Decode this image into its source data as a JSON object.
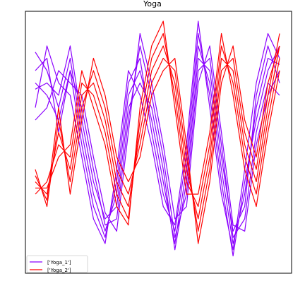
{
  "chart_data": {
    "type": "line",
    "title": "Yoga",
    "xlabel": "",
    "ylabel": "",
    "grid": false,
    "legend_position": "bottom-left",
    "axes_visible": false,
    "series_colors": {
      "Yoga_1": "#8b00ff",
      "Yoga_2": "#ff0000"
    },
    "legend": [
      {
        "label": "['Yoga_1']",
        "color": "#8b00ff"
      },
      {
        "label": "['Yoga_2']",
        "color": "#ff0000"
      }
    ],
    "x": [
      0,
      20,
      40,
      60,
      80,
      100,
      120,
      140,
      160,
      180,
      200,
      220,
      240,
      260,
      280,
      300,
      320,
      340,
      360,
      380,
      400,
      420
    ],
    "ylim": [
      -2.0,
      2.0
    ],
    "series": [
      {
        "name": "Yoga_1",
        "values": [
          1.5,
          1.2,
          0.6,
          1.4,
          0.2,
          -0.8,
          -1.4,
          -0.8,
          0.8,
          1.2,
          0.4,
          -0.6,
          -1.6,
          -0.4,
          1.6,
          1.0,
          -0.4,
          -1.6,
          -0.8,
          0.6,
          1.4,
          1.3
        ]
      },
      {
        "name": "Yoga_1",
        "values": [
          1.2,
          1.4,
          0.2,
          1.2,
          0.0,
          -1.0,
          -1.5,
          -0.6,
          1.0,
          1.4,
          0.2,
          -0.8,
          -1.4,
          -0.2,
          1.8,
          0.8,
          -0.6,
          -1.8,
          -0.6,
          0.4,
          1.2,
          1.6
        ]
      },
      {
        "name": "Yoga_1",
        "values": [
          0.9,
          1.0,
          0.8,
          1.6,
          0.4,
          -0.6,
          -1.2,
          -1.0,
          0.6,
          1.0,
          0.6,
          -0.4,
          -1.7,
          -0.6,
          1.4,
          1.2,
          -0.2,
          -1.4,
          -1.0,
          0.8,
          1.6,
          1.0
        ]
      },
      {
        "name": "Yoga_1",
        "values": [
          1.0,
          0.8,
          0.4,
          1.2,
          0.6,
          -0.4,
          -1.3,
          -1.2,
          0.4,
          1.6,
          0.8,
          -0.2,
          -1.5,
          -0.8,
          1.2,
          1.4,
          0.0,
          -1.5,
          -1.2,
          0.2,
          1.0,
          0.8
        ]
      },
      {
        "name": "Yoga_1",
        "values": [
          0.6,
          1.6,
          1.0,
          0.8,
          -0.2,
          -1.2,
          -1.6,
          -0.4,
          1.2,
          0.8,
          0.0,
          -1.0,
          -1.3,
          0.0,
          2.0,
          0.6,
          -0.8,
          -1.7,
          -0.4,
          1.0,
          1.8,
          1.4
        ]
      },
      {
        "name": "Yoga_1",
        "values": [
          0.4,
          0.6,
          1.2,
          1.0,
          0.8,
          -0.2,
          -1.1,
          -1.4,
          0.2,
          1.8,
          1.0,
          0.0,
          -1.2,
          -1.0,
          1.0,
          1.6,
          0.2,
          -1.3,
          -1.4,
          0.0,
          0.8,
          1.2
        ]
      },
      {
        "name": "Yoga_2",
        "values": [
          -0.6,
          -0.8,
          0.2,
          -0.4,
          0.8,
          1.0,
          0.4,
          -0.6,
          -1.0,
          0.2,
          1.2,
          1.6,
          1.0,
          -0.4,
          -1.2,
          -0.2,
          1.4,
          1.2,
          0.0,
          -0.6,
          0.6,
          1.6
        ]
      },
      {
        "name": "Yoga_2",
        "values": [
          -0.8,
          -0.6,
          0.0,
          -0.2,
          1.0,
          0.8,
          0.2,
          -0.8,
          -1.2,
          0.4,
          1.4,
          1.8,
          0.8,
          -0.6,
          -1.0,
          0.0,
          1.6,
          1.0,
          -0.2,
          -0.8,
          0.4,
          1.4
        ]
      },
      {
        "name": "Yoga_2",
        "values": [
          -0.4,
          -1.0,
          0.4,
          -0.6,
          0.6,
          1.2,
          0.6,
          -0.4,
          -0.8,
          0.0,
          1.0,
          1.4,
          1.2,
          -0.2,
          -1.4,
          -0.4,
          1.2,
          1.4,
          0.2,
          -0.4,
          0.8,
          1.8
        ]
      },
      {
        "name": "Yoga_2",
        "values": [
          -0.7,
          -0.7,
          -0.2,
          0.0,
          1.2,
          0.6,
          0.0,
          -1.0,
          -1.3,
          0.6,
          1.6,
          2.0,
          0.6,
          -0.8,
          -0.8,
          0.2,
          1.8,
          0.8,
          -0.4,
          -1.0,
          0.2,
          1.2
        ]
      },
      {
        "name": "Yoga_2",
        "values": [
          -0.5,
          -0.9,
          0.6,
          -0.8,
          0.4,
          1.4,
          0.8,
          -0.2,
          -0.6,
          -0.2,
          0.8,
          1.2,
          1.4,
          0.0,
          -1.6,
          -0.6,
          1.0,
          1.6,
          0.4,
          -0.2,
          1.0,
          1.6
        ]
      }
    ]
  }
}
